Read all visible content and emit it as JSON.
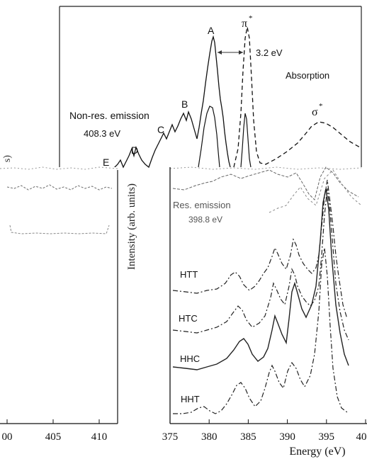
{
  "chart_data": [
    {
      "type": "line",
      "panel": "top spectrum (partially cropped)",
      "series": [
        {
          "name": "Non-res. emission",
          "style": "solid",
          "x": [
            371.5,
            373,
            374,
            375,
            376,
            377,
            378,
            378.5,
            379,
            379.5,
            380,
            380.5,
            381,
            381.5,
            382,
            382.5,
            383
          ],
          "y": [
            0.06,
            0.12,
            0.22,
            0.3,
            0.38,
            0.45,
            0.34,
            0.55,
            0.9,
            1.0,
            0.82,
            0.62,
            0.48,
            0.34,
            0.18,
            0.1,
            0.06
          ]
        },
        {
          "name": "Absorption",
          "style": "dashed",
          "x": [
            383,
            383.5,
            384,
            384.5,
            384.8,
            385.2,
            385.6,
            386,
            386.5,
            387,
            388,
            389,
            390,
            391,
            392,
            393,
            394,
            395,
            396,
            397,
            398,
            399
          ],
          "y": [
            0.02,
            0.1,
            0.4,
            0.8,
            1.0,
            0.8,
            0.4,
            0.14,
            0.06,
            0.05,
            0.06,
            0.08,
            0.11,
            0.15,
            0.19,
            0.23,
            0.27,
            0.29,
            0.29,
            0.27,
            0.24,
            0.22
          ]
        }
      ],
      "annotations": [
        "A",
        "B",
        "C",
        "D",
        "E",
        "π*",
        "3.2 eV",
        "Absorption",
        "σ*",
        "Non-res. emission",
        "408.3 eV"
      ]
    },
    {
      "type": "line",
      "panel": "bottom-right stacked spectra",
      "xlabel": "Energy (eV)",
      "ylabel": "Intensity (arb. units)",
      "xlim": [
        375,
        400
      ],
      "xticks": [
        "375",
        "380",
        "385",
        "390",
        "395",
        "40"
      ],
      "series": [
        {
          "name": "HHT",
          "peaks": [
            [
              380.5,
              0.1
            ],
            [
              383.5,
              0.55
            ],
            [
              388.0,
              0.62
            ],
            [
              390.5,
              0.7
            ],
            [
              394.0,
              1.0
            ]
          ]
        },
        {
          "name": "HHC",
          "peaks": [
            [
              380.5,
              0.12
            ],
            [
              384.5,
              0.6
            ],
            [
              388.5,
              0.55
            ],
            [
              391.0,
              0.8
            ],
            [
              395.0,
              1.0
            ]
          ]
        },
        {
          "name": "HTC",
          "peaks": [
            [
              380.5,
              0.1
            ],
            [
              384.0,
              0.55
            ],
            [
              387.5,
              0.62
            ],
            [
              390.0,
              0.78
            ],
            [
              394.0,
              1.0
            ]
          ]
        },
        {
          "name": "HTT",
          "peaks": [
            [
              380.5,
              0.1
            ],
            [
              383.5,
              0.55
            ],
            [
              387.5,
              0.6
            ],
            [
              390.0,
              0.75
            ],
            [
              394.5,
              1.0
            ]
          ]
        },
        {
          "name": "Res. emission",
          "peaks": [
            [
              385.0,
              0.3
            ],
            [
              390.0,
              0.5
            ],
            [
              395.0,
              1.0
            ]
          ]
        }
      ],
      "annotations": [
        "Res. emission",
        "398.8 eV"
      ]
    },
    {
      "type": "line",
      "panel": "bottom-left partial panel (cropped)",
      "xticks": [
        "00",
        "405",
        "410"
      ],
      "ylabel_fragment": "s)"
    }
  ],
  "labels": {
    "A": "A",
    "B": "B",
    "C": "C",
    "D": "D",
    "E": "E",
    "pi": "π",
    "star": "*",
    "sigma": "σ",
    "shift": "3.2 eV",
    "absorption": "Absorption",
    "nonres": "Non-res. emission",
    "nonres_energy": "408.3 eV",
    "res": "Res. emission",
    "res_energy": "398.8 eV",
    "HTT": "HTT",
    "HTC": "HTC",
    "HHC": "HHC",
    "HHT": "HHT",
    "ylabel": "Intensity (arb. units)",
    "ylabel_left": "s)",
    "xlabel": "Energy (eV)",
    "xticks_right": [
      "375",
      "380",
      "385",
      "390",
      "395",
      "40"
    ],
    "xticks_left": [
      "00",
      "405",
      "410"
    ]
  }
}
